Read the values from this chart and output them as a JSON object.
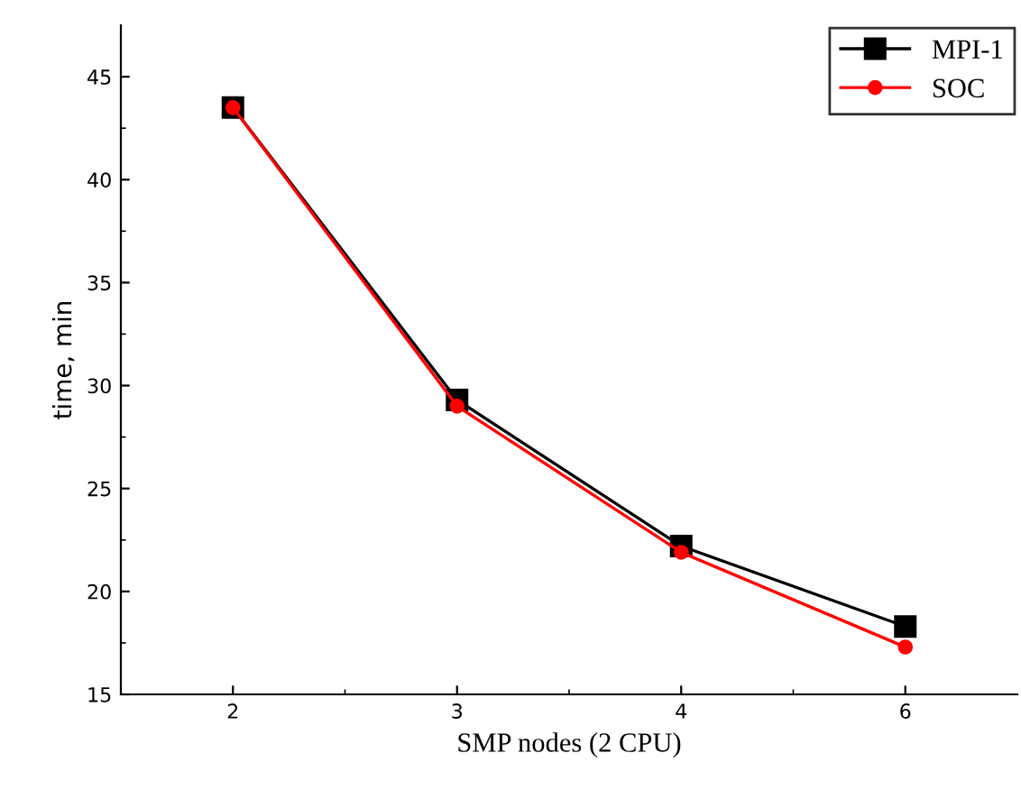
{
  "chart_data": {
    "type": "line",
    "xlabel": "SMP nodes (2 CPU)",
    "ylabel": "time, min",
    "categories": [
      "2",
      "3",
      "4",
      "6"
    ],
    "series": [
      {
        "name": "MPI-1",
        "color": "#000000",
        "marker": "square",
        "values": [
          43.5,
          29.3,
          22.2,
          18.3
        ]
      },
      {
        "name": "SOC",
        "color": "#ff0000",
        "marker": "circle",
        "values": [
          43.5,
          29.0,
          21.9,
          17.3
        ]
      }
    ],
    "ylim": [
      15,
      47.5
    ],
    "yticks": [
      15,
      20,
      25,
      30,
      35,
      40,
      45
    ],
    "grid": false,
    "legend": "top right",
    "line_style": "solid"
  }
}
